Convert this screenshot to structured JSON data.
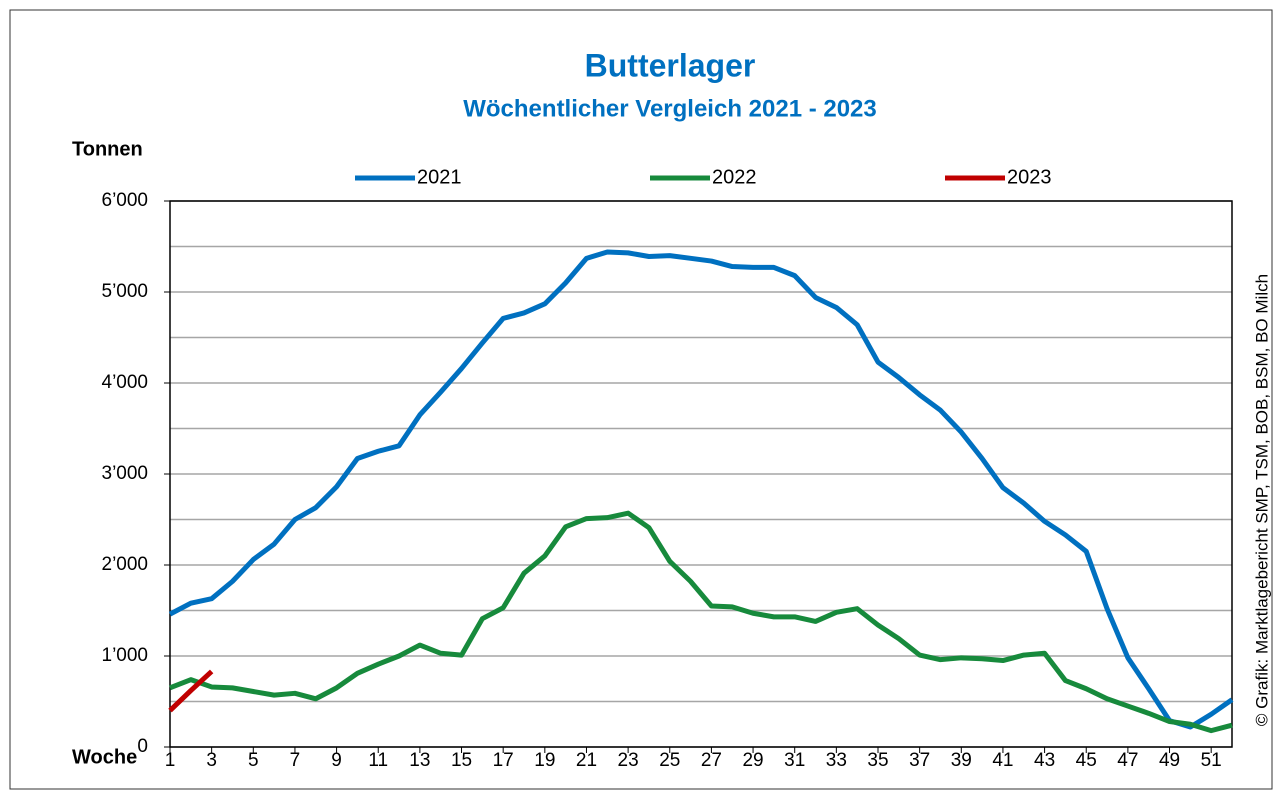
{
  "chart_data": {
    "type": "line",
    "title": "Butterlager",
    "subtitle": "Wöchentlicher Vergleich 2021 - 2023",
    "y_label": "Tonnen",
    "x_label": "Woche",
    "source": "© Grafik: Marktlagebericht SMP, TSM, BOB, BSM, BO Milch",
    "x": [
      1,
      2,
      3,
      4,
      5,
      6,
      7,
      8,
      9,
      10,
      11,
      12,
      13,
      14,
      15,
      16,
      17,
      18,
      19,
      20,
      21,
      22,
      23,
      24,
      25,
      26,
      27,
      28,
      29,
      30,
      31,
      32,
      33,
      34,
      35,
      36,
      37,
      38,
      39,
      40,
      41,
      42,
      43,
      44,
      45,
      46,
      47,
      48,
      49,
      50,
      51,
      52
    ],
    "xlim": [
      1,
      52
    ],
    "xticks": [
      1,
      3,
      5,
      7,
      9,
      11,
      13,
      15,
      17,
      19,
      21,
      23,
      25,
      27,
      29,
      31,
      33,
      35,
      37,
      39,
      41,
      43,
      45,
      47,
      49,
      51
    ],
    "ylim": [
      0,
      6000
    ],
    "yticks": [
      0,
      {
        "value": 1000,
        "label": "1’000"
      },
      {
        "value": 2000,
        "label": "2’000"
      },
      {
        "value": 3000,
        "label": "3’000"
      },
      {
        "value": 4000,
        "label": "4’000"
      },
      {
        "value": 5000,
        "label": "5’000"
      },
      {
        "value": 6000,
        "label": "6’000"
      }
    ],
    "minor_grid": [
      500,
      1500,
      2500,
      3500,
      4500,
      5500
    ],
    "grid": true,
    "series": [
      {
        "name": "2021",
        "color": "#0070c0",
        "values": [
          1460,
          1580,
          1630,
          1820,
          2060,
          2230,
          2500,
          2630,
          2860,
          3170,
          3250,
          3310,
          3650,
          3900,
          4160,
          4440,
          4710,
          4770,
          4870,
          5100,
          5370,
          5440,
          5430,
          5390,
          5400,
          5370,
          5340,
          5280,
          5270,
          5270,
          5180,
          4940,
          4830,
          4640,
          4230,
          4060,
          3870,
          3700,
          3460,
          3170,
          2850,
          2680,
          2480,
          2330,
          2150,
          1520,
          980,
          640,
          290,
          220,
          360,
          520
        ]
      },
      {
        "name": "2022",
        "color": "#178a3c",
        "values": [
          650,
          740,
          660,
          650,
          610,
          570,
          590,
          530,
          650,
          810,
          910,
          1000,
          1120,
          1030,
          1010,
          1410,
          1530,
          1910,
          2100,
          2420,
          2510,
          2520,
          2570,
          2410,
          2040,
          1820,
          1550,
          1540,
          1470,
          1430,
          1430,
          1380,
          1480,
          1520,
          1340,
          1190,
          1010,
          960,
          980,
          970,
          950,
          1010,
          1030,
          730,
          640,
          530,
          450,
          370,
          280,
          250,
          180,
          240
        ]
      },
      {
        "name": "2023",
        "color": "#c00000",
        "values": [
          400,
          620,
          830,
          null,
          null,
          null,
          null,
          null,
          null,
          null,
          null,
          null,
          null,
          null,
          null,
          null,
          null,
          null,
          null,
          null,
          null,
          null,
          null,
          null,
          null,
          null,
          null,
          null,
          null,
          null,
          null,
          null,
          null,
          null,
          null,
          null,
          null,
          null,
          null,
          null,
          null,
          null,
          null,
          null,
          null,
          null,
          null,
          null,
          null,
          null,
          null,
          null
        ]
      }
    ]
  }
}
